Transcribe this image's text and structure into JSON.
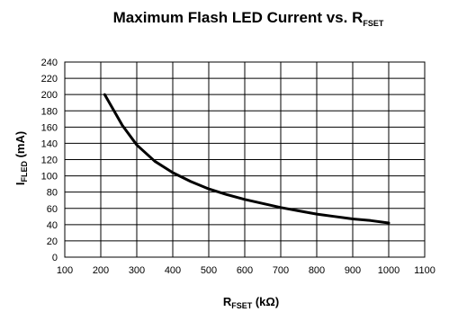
{
  "chart_data": {
    "type": "line",
    "title": {
      "main": "Maximum Flash LED Current vs. R",
      "sub": "FSET"
    },
    "xlabel": {
      "main": "R",
      "sub": "FSET",
      "suffix": " (kΩ)"
    },
    "ylabel": {
      "main": "I",
      "sub": "FLED",
      "suffix": " (mA)"
    },
    "xlim": [
      100,
      1100
    ],
    "ylim": [
      0,
      240
    ],
    "x_ticks": [
      100,
      200,
      300,
      400,
      500,
      600,
      700,
      800,
      900,
      1000,
      1100
    ],
    "y_ticks": [
      0,
      20,
      40,
      60,
      80,
      100,
      120,
      140,
      160,
      180,
      200,
      220,
      240
    ],
    "grid": true,
    "series": [
      {
        "color": "#000000",
        "x": [
          211,
          260,
          300,
          350,
          400,
          450,
          500,
          550,
          600,
          650,
          700,
          750,
          800,
          850,
          900,
          950,
          1000
        ],
        "y": [
          200,
          162,
          138,
          118,
          104,
          93,
          84,
          77,
          71,
          66,
          61,
          57,
          53,
          50,
          47,
          45,
          42
        ]
      }
    ]
  }
}
